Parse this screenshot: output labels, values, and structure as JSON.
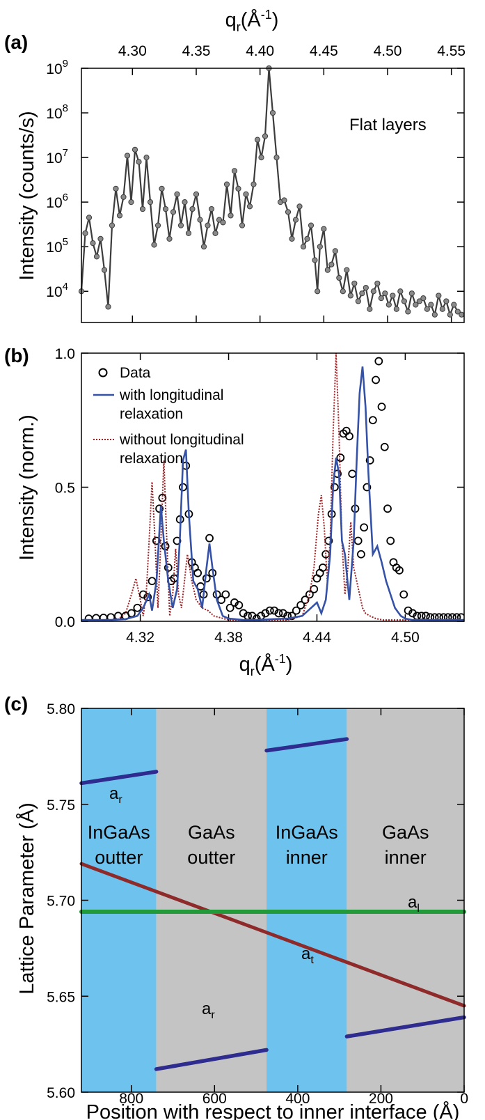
{
  "panels": {
    "a": {
      "label": "(a)",
      "annotation": "Flat layers",
      "ylabel": "Intensity (counts/s)",
      "top_xlabel": {
        "main": "q",
        "sub": "r",
        "unit": "(Å",
        "sup": "-1",
        "close": ")"
      },
      "x_ticks": [
        "4.30",
        "4.35",
        "4.40",
        "4.45",
        "4.50",
        "4.55"
      ],
      "y_ticks": [
        {
          "base": "10",
          "exp": "4"
        },
        {
          "base": "10",
          "exp": "5"
        },
        {
          "base": "10",
          "exp": "6"
        },
        {
          "base": "10",
          "exp": "7"
        },
        {
          "base": "10",
          "exp": "8"
        },
        {
          "base": "10",
          "exp": "9"
        }
      ]
    },
    "b": {
      "label": "(b)",
      "ylabel": "Intensity (norm.)",
      "xlabel": {
        "main": "q",
        "sub": "r",
        "unit": "(Å",
        "sup": "-1",
        "close": ")"
      },
      "x_ticks": [
        "4.32",
        "4.38",
        "4.44",
        "4.50"
      ],
      "y_ticks": [
        "0.0",
        "0.5",
        "1.0"
      ],
      "legend": {
        "data": "Data",
        "with_line1": "with longitudinal",
        "with_line2": "relaxation",
        "without_line1": "without longitudinal",
        "without_line2": "relaxation"
      }
    },
    "c": {
      "label": "(c)",
      "ylabel": "Lattice Parameter (Å)",
      "xlabel": "Position with respect to inner interface (Å)",
      "x_ticks": [
        "800",
        "600",
        "400",
        "200",
        "0"
      ],
      "y_ticks": [
        "5.60",
        "5.65",
        "5.70",
        "5.75",
        "5.80"
      ],
      "regions": [
        {
          "line1": "InGaAs",
          "line2": "outter"
        },
        {
          "line1": "GaAs",
          "line2": "outter"
        },
        {
          "line1": "InGaAs",
          "line2": "inner"
        },
        {
          "line1": "GaAs",
          "line2": "inner"
        }
      ],
      "labels": {
        "ar": "a",
        "ar_sub": "r",
        "at": "a",
        "at_sub": "t",
        "al": "a",
        "al_sub": "l"
      }
    }
  },
  "colors": {
    "data_marker": "#8a8a8a",
    "data_line": "#3c3c3c",
    "with_relaxation": "#3552a6",
    "without_relaxation": "#a02024",
    "ingaas_region": "#6ec3ee",
    "gaas_region": "#c4c4c4",
    "a_r": "#2e2c8e",
    "a_t": "#8f2a2a",
    "a_l": "#229a3a"
  },
  "chart_data": [
    {
      "panel": "a",
      "type": "line",
      "scale": "log",
      "xlim": [
        4.26,
        4.56
      ],
      "ylim": [
        2000,
        1000000000
      ],
      "x_axis_position": "top",
      "grid": false,
      "markers": "circle",
      "x": [
        4.26,
        4.263,
        4.266,
        4.269,
        4.272,
        4.275,
        4.278,
        4.281,
        4.284,
        4.287,
        4.29,
        4.293,
        4.296,
        4.299,
        4.302,
        4.305,
        4.308,
        4.311,
        4.314,
        4.317,
        4.32,
        4.323,
        4.326,
        4.329,
        4.332,
        4.335,
        4.338,
        4.341,
        4.344,
        4.347,
        4.35,
        4.353,
        4.356,
        4.359,
        4.362,
        4.365,
        4.368,
        4.371,
        4.374,
        4.377,
        4.38,
        4.383,
        4.386,
        4.389,
        4.392,
        4.395,
        4.398,
        4.401,
        4.404,
        4.407,
        4.41,
        4.413,
        4.416,
        4.419,
        4.422,
        4.425,
        4.428,
        4.431,
        4.434,
        4.437,
        4.44,
        4.443,
        4.445,
        4.447,
        4.45,
        4.453,
        4.456,
        4.459,
        4.462,
        4.465,
        4.468,
        4.471,
        4.474,
        4.477,
        4.48,
        4.483,
        4.486,
        4.489,
        4.492,
        4.495,
        4.498,
        4.501,
        4.504,
        4.507,
        4.51,
        4.513,
        4.516,
        4.519,
        4.522,
        4.525,
        4.528,
        4.531,
        4.534,
        4.537,
        4.54,
        4.543,
        4.546,
        4.549,
        4.552,
        4.555,
        4.558
      ],
      "y": [
        10000,
        200000,
        450000,
        120000,
        60000,
        150000,
        30000,
        4500,
        300000,
        2000000,
        500000,
        1300000,
        11000000,
        1000000,
        15000000,
        8000000,
        700000,
        10000000,
        1000000,
        110000,
        300000,
        2000000,
        700000,
        150000,
        600000,
        1500000,
        300000,
        1000000,
        200000,
        700000,
        1500000,
        400000,
        100000,
        300000,
        700000,
        200000,
        400000,
        350000,
        2500000,
        500000,
        5000000,
        2000000,
        300000,
        1500000,
        800000,
        2500000,
        25000000,
        10000000,
        30000000,
        1000000000,
        100000000,
        10000000,
        1000000,
        1100000,
        600000,
        150000,
        400000,
        800000,
        100000,
        150000,
        300000,
        50000,
        10000,
        100000,
        250000,
        30000,
        40000,
        80000,
        20000,
        10000,
        30000,
        8000,
        15000,
        6000,
        9000,
        12000,
        4000,
        10000,
        15000,
        7000,
        9000,
        5000,
        8000,
        4000,
        10000,
        6000,
        3500,
        9000,
        5000,
        6000,
        7000,
        4000,
        5000,
        3000,
        8000,
        4000,
        6000,
        3000,
        5000,
        3500,
        3000
      ]
    },
    {
      "panel": "b",
      "type": "line",
      "xlim": [
        4.28,
        4.54
      ],
      "ylim": [
        0,
        1
      ],
      "legend_position": "top-left",
      "grid": false,
      "series": [
        {
          "name": "Data",
          "style": "scatter",
          "x": [
            4.285,
            4.29,
            4.295,
            4.3,
            4.305,
            4.31,
            4.314,
            4.318,
            4.322,
            4.325,
            4.328,
            4.331,
            4.333,
            4.335,
            4.337,
            4.339,
            4.341,
            4.343,
            4.345,
            4.347,
            4.349,
            4.351,
            4.353,
            4.355,
            4.357,
            4.359,
            4.361,
            4.363,
            4.365,
            4.367,
            4.369,
            4.372,
            4.375,
            4.378,
            4.381,
            4.384,
            4.387,
            4.39,
            4.393,
            4.396,
            4.399,
            4.402,
            4.405,
            4.408,
            4.411,
            4.414,
            4.417,
            4.42,
            4.423,
            4.426,
            4.429,
            4.432,
            4.435,
            4.438,
            4.44,
            4.442,
            4.444,
            4.446,
            4.448,
            4.45,
            4.452,
            4.454,
            4.456,
            4.458,
            4.46,
            4.462,
            4.464,
            4.466,
            4.468,
            4.47,
            4.472,
            4.474,
            4.476,
            4.478,
            4.48,
            4.482,
            4.484,
            4.486,
            4.488,
            4.49,
            4.492,
            4.494,
            4.496,
            4.499,
            4.502,
            4.505,
            4.508,
            4.511,
            4.514,
            4.517,
            4.52,
            4.523,
            4.526,
            4.529,
            4.532,
            4.535,
            4.538
          ],
          "y": [
            0.01,
            0.012,
            0.013,
            0.015,
            0.02,
            0.02,
            0.03,
            0.05,
            0.1,
            0.09,
            0.15,
            0.3,
            0.42,
            0.46,
            0.28,
            0.2,
            0.15,
            0.16,
            0.3,
            0.38,
            0.5,
            0.58,
            0.4,
            0.22,
            0.2,
            0.18,
            0.13,
            0.1,
            0.16,
            0.31,
            0.18,
            0.1,
            0.08,
            0.1,
            0.05,
            0.07,
            0.06,
            0.03,
            0.02,
            0.02,
            0.01,
            0.02,
            0.03,
            0.04,
            0.04,
            0.03,
            0.03,
            0.02,
            0.02,
            0.04,
            0.06,
            0.08,
            0.1,
            0.12,
            0.16,
            0.18,
            0.2,
            0.25,
            0.3,
            0.4,
            0.5,
            0.55,
            0.61,
            0.7,
            0.71,
            0.69,
            0.55,
            0.42,
            0.3,
            0.25,
            0.35,
            0.5,
            0.6,
            0.75,
            0.9,
            0.97,
            0.8,
            0.65,
            0.42,
            0.3,
            0.22,
            0.2,
            0.19,
            0.1,
            0.04,
            0.03,
            0.02,
            0.02,
            0.02,
            0.015,
            0.015,
            0.015,
            0.015,
            0.015,
            0.015,
            0.015,
            0.015
          ]
        },
        {
          "name": "with longitudinal relaxation",
          "style": "solid",
          "x": [
            4.28,
            4.3,
            4.31,
            4.318,
            4.322,
            4.326,
            4.328,
            4.331,
            4.334,
            4.336,
            4.339,
            4.342,
            4.345,
            4.347,
            4.349,
            4.351,
            4.353,
            4.356,
            4.359,
            4.362,
            4.365,
            4.367,
            4.369,
            4.372,
            4.376,
            4.38,
            4.39,
            4.4,
            4.41,
            4.42,
            4.43,
            4.436,
            4.44,
            4.443,
            4.446,
            4.449,
            4.451,
            4.453,
            4.455,
            4.457,
            4.459,
            4.462,
            4.465,
            4.467,
            4.469,
            4.471,
            4.473,
            4.475,
            4.478,
            4.481,
            4.484,
            4.487,
            4.49,
            4.493,
            4.497,
            4.5,
            4.505,
            4.51,
            4.54
          ],
          "y": [
            0.005,
            0.005,
            0.008,
            0.02,
            0.05,
            0.1,
            0.04,
            0.15,
            0.43,
            0.3,
            0.15,
            0.05,
            0.12,
            0.32,
            0.6,
            0.64,
            0.4,
            0.15,
            0.12,
            0.05,
            0.2,
            0.29,
            0.2,
            0.08,
            0.02,
            0.01,
            0.005,
            0.005,
            0.008,
            0.01,
            0.02,
            0.05,
            0.07,
            0.03,
            0.08,
            0.25,
            0.5,
            0.61,
            0.55,
            0.3,
            0.25,
            0.08,
            0.3,
            0.6,
            0.85,
            0.95,
            0.8,
            0.55,
            0.25,
            0.28,
            0.22,
            0.15,
            0.1,
            0.05,
            0.02,
            0.01,
            0.005,
            0.005,
            0.005
          ]
        },
        {
          "name": "without longitudinal relaxation",
          "style": "dotted",
          "x": [
            4.28,
            4.3,
            4.305,
            4.31,
            4.314,
            4.317,
            4.32,
            4.322,
            4.324,
            4.326,
            4.328,
            4.33,
            4.332,
            4.334,
            4.336,
            4.338,
            4.34,
            4.342,
            4.344,
            4.346,
            4.348,
            4.35,
            4.352,
            4.355,
            4.358,
            4.362,
            4.366,
            4.37,
            4.38,
            4.4,
            4.42,
            4.43,
            4.435,
            4.438,
            4.441,
            4.443,
            4.445,
            4.447,
            4.449,
            4.451,
            4.453,
            4.455,
            4.457,
            4.459,
            4.461,
            4.463,
            4.465,
            4.467,
            4.469,
            4.471,
            4.473,
            4.476,
            4.48,
            4.485,
            4.49,
            4.5,
            4.54
          ],
          "y": [
            0.005,
            0.005,
            0.008,
            0.03,
            0.1,
            0.16,
            0.08,
            0.02,
            0.1,
            0.3,
            0.52,
            0.3,
            0.05,
            0.3,
            0.6,
            0.3,
            0.02,
            0.1,
            0.27,
            0.1,
            0.05,
            0.15,
            0.25,
            0.15,
            0.08,
            0.05,
            0.04,
            0.02,
            0.005,
            0.005,
            0.005,
            0.02,
            0.1,
            0.2,
            0.4,
            0.47,
            0.35,
            0.15,
            0.3,
            0.7,
            1.0,
            0.7,
            0.3,
            0.1,
            0.2,
            0.37,
            0.2,
            0.15,
            0.1,
            0.05,
            0.03,
            0.02,
            0.01,
            0.005,
            0.005,
            0.005,
            0.005
          ]
        }
      ]
    },
    {
      "panel": "c",
      "type": "line",
      "xlim": [
        920,
        0
      ],
      "ylim": [
        5.6,
        5.8
      ],
      "x_reversed": true,
      "grid": false,
      "regions": [
        {
          "name": "InGaAs outter",
          "from": 920,
          "to": 740
        },
        {
          "name": "GaAs outter",
          "from": 740,
          "to": 475
        },
        {
          "name": "InGaAs inner",
          "from": 475,
          "to": 282
        },
        {
          "name": "GaAs inner",
          "from": 282,
          "to": 0
        }
      ],
      "series": [
        {
          "key": "a_r",
          "segments": [
            {
              "x": [
                920,
                740
              ],
              "y": [
                5.761,
                5.767
              ]
            },
            {
              "x": [
                740,
                475
              ],
              "y": [
                5.612,
                5.622
              ]
            },
            {
              "x": [
                475,
                282
              ],
              "y": [
                5.778,
                5.784
              ]
            },
            {
              "x": [
                282,
                0
              ],
              "y": [
                5.629,
                5.639
              ]
            }
          ]
        },
        {
          "key": "a_t",
          "segments": [
            {
              "x": [
                920,
                0
              ],
              "y": [
                5.719,
                5.645
              ]
            }
          ]
        },
        {
          "key": "a_l",
          "segments": [
            {
              "x": [
                920,
                0
              ],
              "y": [
                5.694,
                5.694
              ]
            }
          ]
        }
      ]
    }
  ]
}
